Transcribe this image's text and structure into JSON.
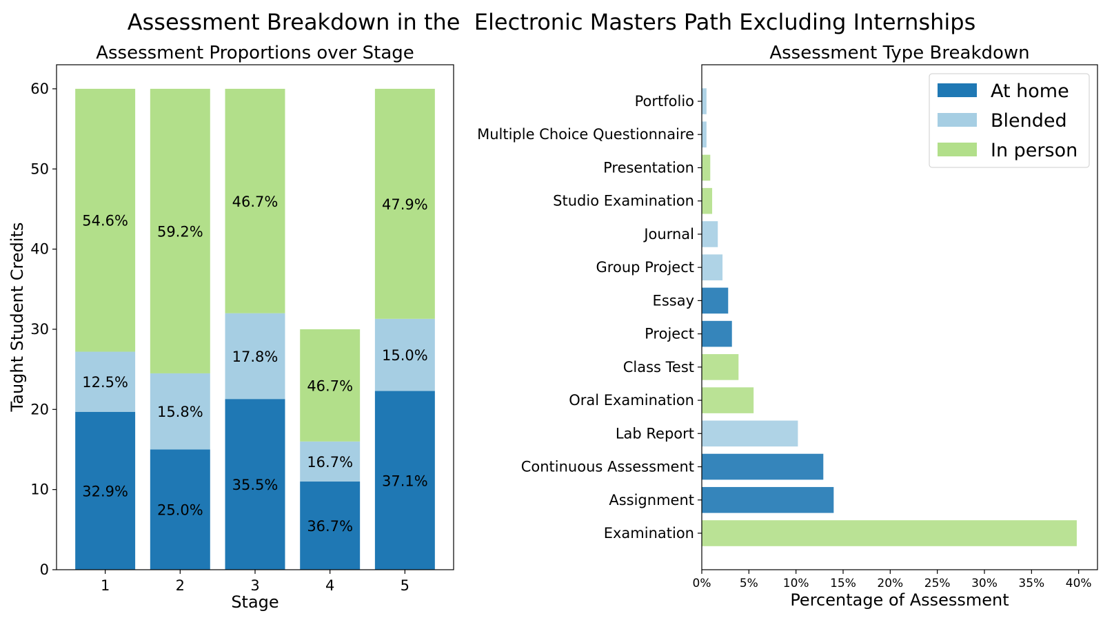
{
  "figure_title": "Assessment Breakdown in the  Electronic Masters Path Excluding Internships",
  "chart_data": [
    {
      "type": "bar",
      "stacked": true,
      "title": "Assessment Proportions over Stage",
      "xlabel": "Stage",
      "ylabel": "Taught Student Credits",
      "categories": [
        "1",
        "2",
        "3",
        "4",
        "5"
      ],
      "ylim": [
        0,
        63
      ],
      "yticks": [
        0,
        10,
        20,
        30,
        40,
        50,
        60
      ],
      "grid": false,
      "series": [
        {
          "key": "at_home",
          "color": "#1f78b4",
          "values": [
            19.7,
            15.0,
            21.3,
            11.0,
            22.3
          ],
          "labels": [
            "32.9%",
            "25.0%",
            "35.5%",
            "36.7%",
            "37.1%"
          ]
        },
        {
          "key": "blended",
          "color": "#a6cee3",
          "values": [
            7.5,
            9.5,
            10.7,
            5.0,
            9.0
          ],
          "labels": [
            "12.5%",
            "15.8%",
            "17.8%",
            "16.7%",
            "15.0%"
          ]
        },
        {
          "key": "in_person",
          "color": "#b2df8a",
          "values": [
            32.8,
            35.5,
            28.0,
            14.0,
            28.7
          ],
          "labels": [
            "54.6%",
            "59.2%",
            "46.7%",
            "46.7%",
            "47.9%"
          ]
        }
      ]
    },
    {
      "type": "bar",
      "orientation": "horizontal",
      "title": "Assessment Type Breakdown",
      "xlabel": "Percentage of Assessment",
      "ylabel": "",
      "xlim": [
        0,
        42
      ],
      "xticks": [
        0,
        5,
        10,
        15,
        20,
        25,
        30,
        35,
        40
      ],
      "xtick_labels": [
        "0%",
        "5%",
        "10%",
        "15%",
        "20%",
        "25%",
        "30%",
        "35%",
        "40%"
      ],
      "grid": false,
      "legend_position": "top-right",
      "legend": [
        {
          "name": "At home",
          "color": "#1f78b4"
        },
        {
          "name": "Blended",
          "color": "#a6cee3"
        },
        {
          "name": "In person",
          "color": "#b2df8a"
        }
      ],
      "categories": [
        "Portfolio",
        "Multiple Choice Questionnaire",
        "Presentation",
        "Studio Examination",
        "Journal",
        "Group Project",
        "Essay",
        "Project",
        "Class Test",
        "Oral Examination",
        "Lab Report",
        "Continuous Assessment",
        "Assignment",
        "Examination"
      ],
      "values": [
        0.5,
        0.5,
        0.9,
        1.1,
        1.7,
        2.2,
        2.8,
        3.2,
        3.9,
        5.5,
        10.2,
        12.9,
        14.0,
        39.8
      ],
      "colors": [
        "#a6cee3",
        "#a6cee3",
        "#b2df8a",
        "#b2df8a",
        "#a6cee3",
        "#a6cee3",
        "#1f78b4",
        "#1f78b4",
        "#b2df8a",
        "#b2df8a",
        "#a6cee3",
        "#1f78b4",
        "#1f78b4",
        "#b2df8a"
      ]
    }
  ]
}
